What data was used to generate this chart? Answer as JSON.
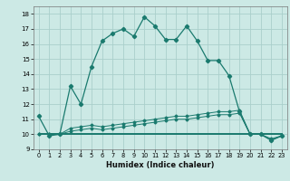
{
  "xlabel": "Humidex (Indice chaleur)",
  "bg_color": "#cce9e5",
  "grid_color": "#aacfcb",
  "line_color": "#1a7a6e",
  "xlim": [
    -0.5,
    23.5
  ],
  "ylim": [
    9.0,
    18.5
  ],
  "yticks": [
    9,
    10,
    11,
    12,
    13,
    14,
    15,
    16,
    17,
    18
  ],
  "xticks": [
    0,
    1,
    2,
    3,
    4,
    5,
    6,
    7,
    8,
    9,
    10,
    11,
    12,
    13,
    14,
    15,
    16,
    17,
    18,
    19,
    20,
    21,
    22,
    23
  ],
  "series1_x": [
    0,
    1,
    2,
    3,
    4,
    5,
    6,
    7,
    8,
    9,
    10,
    11,
    12,
    13,
    14,
    15,
    16,
    17,
    18,
    19,
    20,
    21,
    22,
    23
  ],
  "series1_y": [
    11.2,
    9.9,
    10.0,
    13.2,
    12.0,
    14.5,
    16.2,
    16.7,
    17.0,
    16.5,
    17.8,
    17.2,
    16.3,
    16.3,
    17.2,
    16.2,
    14.9,
    14.9,
    13.9,
    11.5,
    10.0,
    10.0,
    9.6,
    9.9
  ],
  "series2_x": [
    0,
    1,
    2,
    3,
    4,
    5,
    6,
    7,
    8,
    9,
    10,
    11,
    12,
    13,
    14,
    15,
    16,
    17,
    18,
    19,
    20,
    21,
    22,
    23
  ],
  "series2_y": [
    10.0,
    10.0,
    10.0,
    10.4,
    10.5,
    10.6,
    10.5,
    10.6,
    10.7,
    10.8,
    10.9,
    11.0,
    11.1,
    11.2,
    11.2,
    11.3,
    11.4,
    11.5,
    11.5,
    11.6,
    10.0,
    10.0,
    9.6,
    9.9
  ],
  "series3_x": [
    0,
    1,
    2,
    3,
    4,
    5,
    6,
    7,
    8,
    9,
    10,
    11,
    12,
    13,
    14,
    15,
    16,
    17,
    18,
    19,
    20,
    21,
    22,
    23
  ],
  "series3_y": [
    10.0,
    10.0,
    10.0,
    10.2,
    10.3,
    10.4,
    10.3,
    10.4,
    10.5,
    10.6,
    10.7,
    10.8,
    10.9,
    11.0,
    11.0,
    11.1,
    11.2,
    11.3,
    11.3,
    11.4,
    10.0,
    10.0,
    9.7,
    9.9
  ],
  "series4_x": [
    0,
    1,
    2,
    3,
    4,
    5,
    6,
    7,
    8,
    9,
    10,
    11,
    12,
    13,
    14,
    15,
    16,
    17,
    18,
    19,
    20,
    21,
    22,
    23
  ],
  "series4_y": [
    10.0,
    10.0,
    10.0,
    10.0,
    10.0,
    10.0,
    10.0,
    10.0,
    10.0,
    10.0,
    10.0,
    10.0,
    10.0,
    10.0,
    10.0,
    10.0,
    10.0,
    10.0,
    10.0,
    10.0,
    10.0,
    10.0,
    10.0,
    10.0
  ]
}
